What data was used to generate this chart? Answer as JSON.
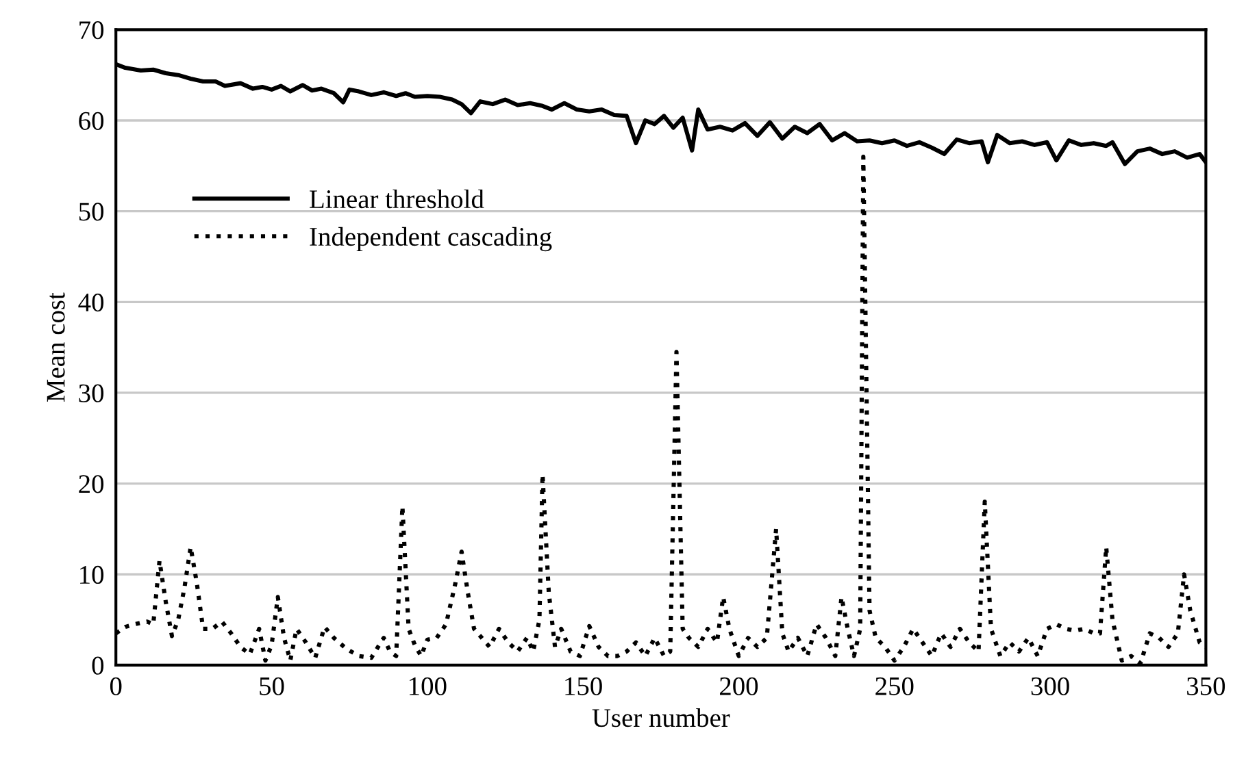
{
  "chart_data": {
    "type": "line",
    "xlabel": "User number",
    "ylabel": "Mean cost",
    "xlim": [
      0,
      350
    ],
    "ylim": [
      0,
      70
    ],
    "xticks": [
      0,
      50,
      100,
      150,
      200,
      250,
      300,
      350
    ],
    "yticks": [
      0,
      10,
      20,
      30,
      40,
      50,
      60,
      70
    ],
    "grid": "y",
    "legend": "left",
    "series": [
      {
        "name": "Linear threshold",
        "color": "#000000",
        "line_style": "solid",
        "x": [
          0,
          3,
          8,
          12,
          16,
          20,
          24,
          28,
          32,
          35,
          40,
          44,
          47,
          50,
          53,
          56,
          60,
          63,
          66,
          70,
          73,
          75,
          78,
          82,
          86,
          90,
          93,
          96,
          100,
          104,
          108,
          111,
          114,
          117,
          121,
          125,
          129,
          133,
          137,
          140,
          144,
          148,
          152,
          156,
          160,
          164,
          167,
          170,
          173,
          176,
          179,
          182,
          185,
          187,
          190,
          194,
          198,
          202,
          206,
          210,
          214,
          218,
          222,
          226,
          230,
          234,
          238,
          242,
          246,
          250,
          254,
          258,
          262,
          266,
          270,
          274,
          278,
          280,
          283,
          287,
          291,
          295,
          299,
          302,
          306,
          310,
          314,
          318,
          320,
          324,
          328,
          332,
          336,
          340,
          344,
          348,
          350
        ],
        "values": [
          66.2,
          65.8,
          65.5,
          65.6,
          65.2,
          65.0,
          64.6,
          64.3,
          64.3,
          63.8,
          64.1,
          63.5,
          63.7,
          63.4,
          63.8,
          63.2,
          63.9,
          63.3,
          63.5,
          63.0,
          62.0,
          63.4,
          63.2,
          62.8,
          63.1,
          62.7,
          63.0,
          62.6,
          62.7,
          62.6,
          62.3,
          61.8,
          60.8,
          62.1,
          61.8,
          62.3,
          61.7,
          61.9,
          61.6,
          61.2,
          61.9,
          61.2,
          61.0,
          61.2,
          60.6,
          60.5,
          57.5,
          60.0,
          59.6,
          60.5,
          59.2,
          60.3,
          56.7,
          61.2,
          59.0,
          59.3,
          58.9,
          59.7,
          58.3,
          59.8,
          58.0,
          59.3,
          58.6,
          59.6,
          57.8,
          58.6,
          57.7,
          57.8,
          57.5,
          57.8,
          57.2,
          57.6,
          57.0,
          56.3,
          57.9,
          57.5,
          57.7,
          55.4,
          58.4,
          57.5,
          57.7,
          57.3,
          57.6,
          55.6,
          57.8,
          57.3,
          57.5,
          57.2,
          57.6,
          55.2,
          56.6,
          56.9,
          56.3,
          56.6,
          55.9,
          56.3,
          55.4
        ]
      },
      {
        "name": "Independent cascading",
        "color": "#000000",
        "line_style": "dotted",
        "x": [
          0,
          3,
          6,
          10,
          12,
          14,
          16,
          18,
          20,
          22,
          24,
          26,
          28,
          31,
          34,
          37,
          40,
          43,
          46,
          48,
          50,
          52,
          54,
          56,
          58,
          61,
          64,
          67,
          70,
          74,
          78,
          82,
          86,
          88,
          90,
          92,
          94,
          96,
          98,
          100,
          103,
          106,
          109,
          111,
          113,
          115,
          117,
          120,
          123,
          126,
          129,
          132,
          134,
          136,
          137,
          139,
          141,
          143,
          146,
          149,
          152,
          155,
          158,
          161,
          164,
          167,
          170,
          173,
          176,
          178,
          180,
          182,
          184,
          187,
          190,
          193,
          195,
          197,
          200,
          203,
          206,
          209,
          212,
          214,
          216,
          219,
          222,
          225,
          228,
          231,
          233,
          235,
          237,
          239,
          240,
          242,
          244,
          247,
          250,
          253,
          256,
          259,
          262,
          265,
          268,
          271,
          274,
          277,
          279,
          281,
          284,
          287,
          290,
          293,
          296,
          299,
          302,
          305,
          308,
          311,
          314,
          316,
          318,
          320,
          323,
          326,
          329,
          332,
          335,
          338,
          341,
          343,
          345,
          348,
          350
        ],
        "values": [
          3.5,
          4.2,
          4.5,
          4.8,
          4.5,
          11.5,
          7.0,
          3.2,
          5.0,
          8.5,
          13.0,
          9.0,
          4.0,
          4.0,
          4.8,
          3.5,
          2.0,
          1.2,
          4.0,
          0.5,
          2.2,
          7.5,
          3.0,
          0.5,
          4.0,
          2.5,
          0.8,
          4.2,
          3.0,
          1.8,
          1.0,
          0.8,
          3.0,
          1.5,
          1.0,
          17.5,
          4.0,
          2.2,
          1.0,
          2.8,
          3.0,
          4.5,
          9.0,
          12.5,
          8.0,
          4.0,
          3.2,
          2.0,
          4.0,
          2.5,
          1.5,
          3.0,
          1.5,
          5.0,
          21.0,
          8.0,
          2.0,
          4.0,
          1.5,
          1.0,
          4.3,
          2.0,
          1.0,
          1.0,
          1.5,
          2.5,
          1.0,
          3.0,
          1.0,
          1.5,
          34.5,
          4.0,
          3.0,
          2.0,
          4.0,
          2.5,
          7.5,
          4.0,
          1.0,
          3.0,
          2.0,
          3.0,
          15.0,
          3.5,
          1.5,
          3.0,
          1.0,
          4.5,
          3.0,
          1.0,
          7.5,
          4.0,
          1.0,
          4.0,
          56.0,
          6.0,
          3.0,
          2.0,
          0.5,
          2.0,
          4.0,
          2.5,
          1.0,
          3.5,
          2.0,
          4.0,
          2.5,
          1.5,
          18.0,
          4.0,
          1.0,
          2.5,
          1.5,
          3.0,
          1.0,
          4.0,
          4.5,
          4.0,
          3.8,
          4.0,
          3.5,
          3.5,
          13.0,
          5.0,
          0.5,
          1.0,
          0.2,
          3.5,
          3.0,
          2.0,
          3.5,
          10.0,
          6.0,
          2.5,
          2.0
        ]
      }
    ]
  }
}
